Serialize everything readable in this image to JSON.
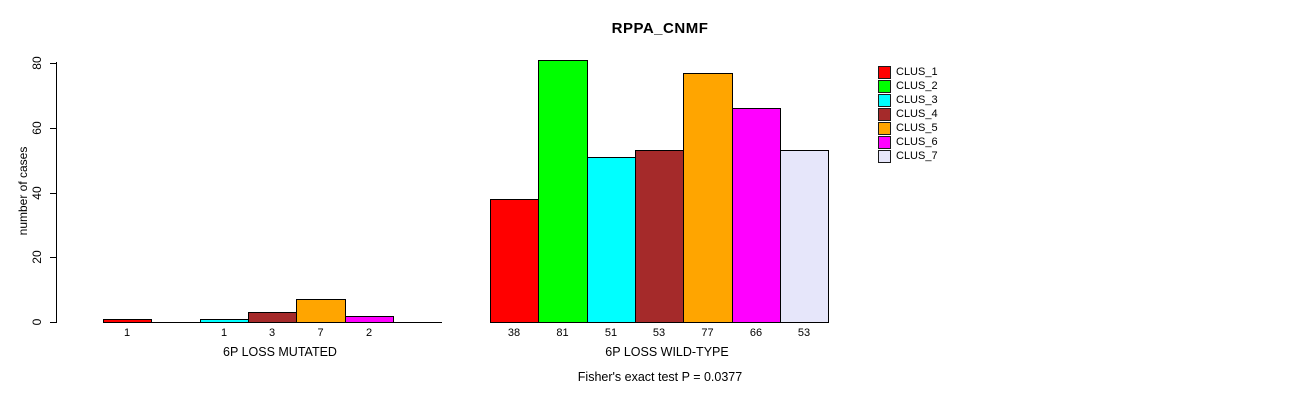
{
  "title": "RPPA_CNMF",
  "footer_annotation": "Fisher's exact test P = 0.0377",
  "legend": {
    "items": [
      {
        "label": "CLUS_1",
        "color": "#FF0000"
      },
      {
        "label": "CLUS_2",
        "color": "#00FF00"
      },
      {
        "label": "CLUS_3",
        "color": "#00FFFF"
      },
      {
        "label": "CLUS_4",
        "color": "#A52A2A"
      },
      {
        "label": "CLUS_5",
        "color": "#FFA500"
      },
      {
        "label": "CLUS_6",
        "color": "#FF00FF"
      },
      {
        "label": "CLUS_7",
        "color": "#E6E6FA"
      }
    ]
  },
  "chart_data": {
    "type": "bar",
    "title": "RPPA_CNMF",
    "xlabel": "",
    "ylabel": "number of cases",
    "ylim": [
      0,
      80
    ],
    "yticks": [
      0,
      20,
      40,
      60,
      80
    ],
    "grid": false,
    "legend_position": "right",
    "bar_value_labels_shown": true,
    "categories": [
      "6P LOSS MUTATED",
      "6P LOSS WILD-TYPE"
    ],
    "series": [
      {
        "name": "CLUS_1",
        "color": "#FF0000",
        "values": [
          1,
          38
        ]
      },
      {
        "name": "CLUS_2",
        "color": "#00FF00",
        "values": [
          0,
          81
        ]
      },
      {
        "name": "CLUS_3",
        "color": "#00FFFF",
        "values": [
          1,
          51
        ]
      },
      {
        "name": "CLUS_4",
        "color": "#A52A2A",
        "values": [
          3,
          53
        ]
      },
      {
        "name": "CLUS_5",
        "color": "#FFA500",
        "values": [
          7,
          77
        ]
      },
      {
        "name": "CLUS_6",
        "color": "#FF00FF",
        "values": [
          2,
          66
        ]
      },
      {
        "name": "CLUS_7",
        "color": "#E6E6FA",
        "values": [
          0,
          53
        ]
      }
    ],
    "groups": [
      {
        "label": "6P LOSS MUTATED",
        "values": [
          1,
          0,
          1,
          3,
          7,
          2,
          0
        ]
      },
      {
        "label": "6P LOSS WILD-TYPE",
        "values": [
          38,
          81,
          51,
          53,
          77,
          66,
          53
        ]
      }
    ],
    "annotation": "Fisher's exact test P = 0.0377"
  }
}
